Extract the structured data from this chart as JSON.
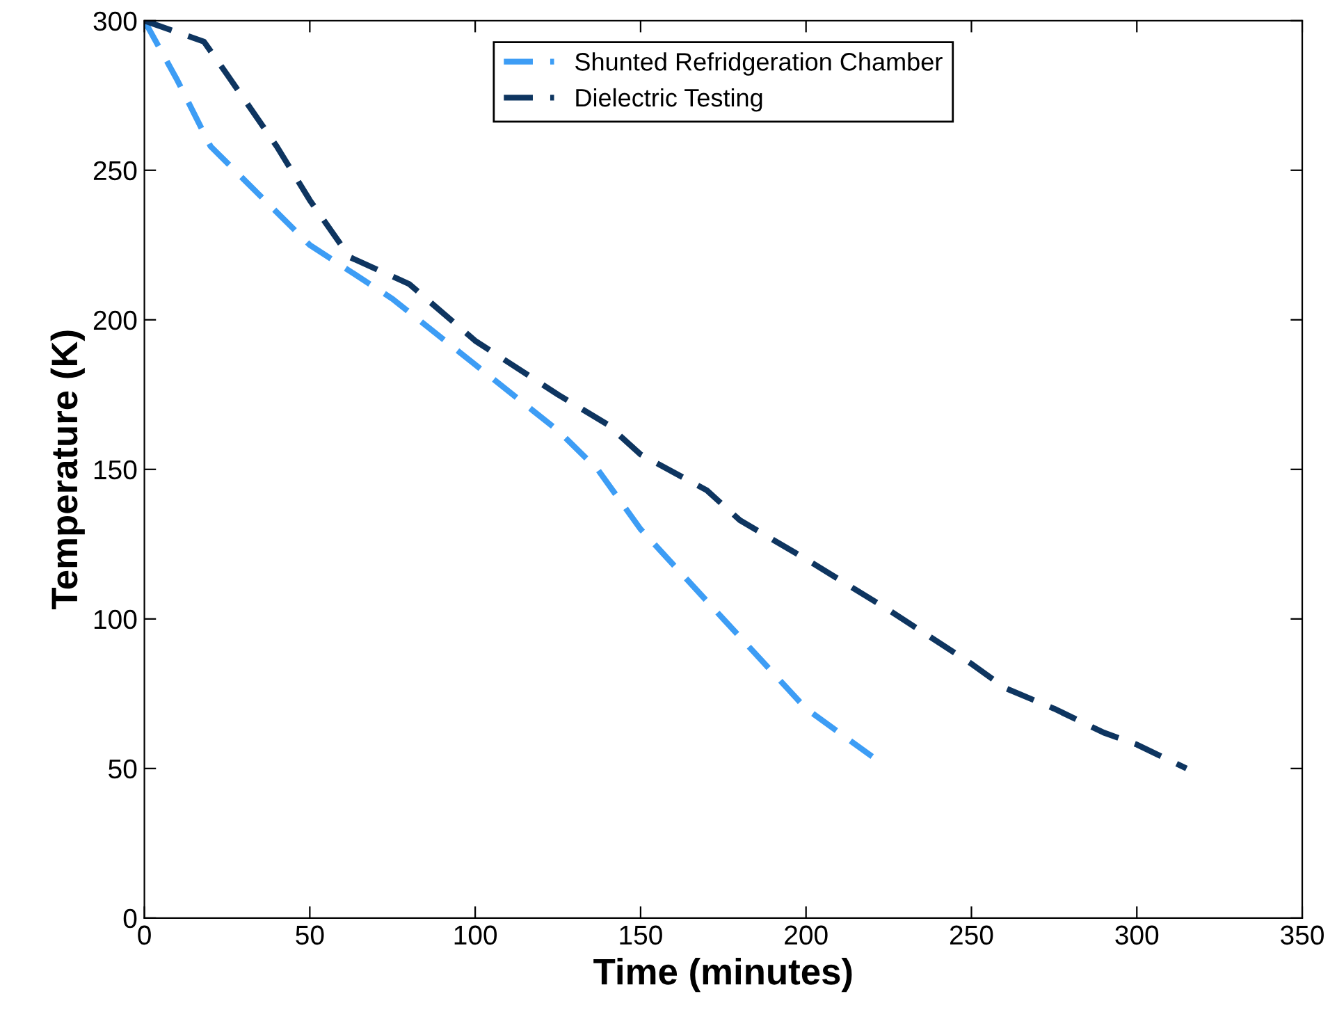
{
  "chart_data": {
    "type": "line",
    "xlabel": "Time (minutes)",
    "ylabel": "Temperature (K)",
    "xlim": [
      0,
      350
    ],
    "xticks": [
      0,
      50,
      100,
      150,
      200,
      250,
      300,
      350
    ],
    "ylim": [
      0,
      300
    ],
    "yticks": [
      0,
      50,
      100,
      150,
      200,
      250,
      300
    ],
    "grid": false,
    "legend": "top",
    "line_style": "dashed",
    "marker": "none",
    "series": [
      {
        "name": "Shunted Refridgeration Chamber",
        "color": "#3d9df5",
        "x": [
          0,
          10,
          20,
          30,
          50,
          75,
          100,
          125,
          137,
          150,
          175,
          200,
          210,
          220
        ],
        "values": [
          300,
          280,
          258,
          247,
          225,
          207,
          185,
          163,
          150,
          130,
          100,
          70,
          62,
          54
        ]
      },
      {
        "name": "Dielectric Testing",
        "color": "#0e3560",
        "x": [
          0,
          18,
          25,
          40,
          50,
          62,
          70,
          80,
          100,
          125,
          140,
          150,
          170,
          180,
          200,
          225,
          250,
          260,
          275,
          290,
          300,
          315
        ],
        "values": [
          300,
          293,
          282,
          258,
          240,
          221,
          217,
          212,
          193,
          175,
          165,
          155,
          143,
          133,
          120,
          103,
          85,
          77,
          70,
          62,
          58,
          50
        ]
      }
    ]
  }
}
